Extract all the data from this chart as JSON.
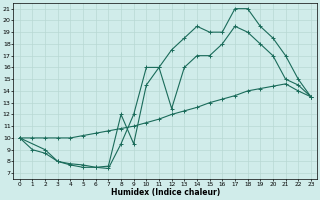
{
  "xlabel": "Humidex (Indice chaleur)",
  "xlim": [
    -0.5,
    23.5
  ],
  "ylim": [
    6.5,
    21.5
  ],
  "xticks": [
    0,
    1,
    2,
    3,
    4,
    5,
    6,
    7,
    8,
    9,
    10,
    11,
    12,
    13,
    14,
    15,
    16,
    17,
    18,
    19,
    20,
    21,
    22,
    23
  ],
  "yticks": [
    7,
    8,
    9,
    10,
    11,
    12,
    13,
    14,
    15,
    16,
    17,
    18,
    19,
    20,
    21
  ],
  "bg_color": "#d0ecea",
  "grid_color": "#b8d8d4",
  "line_color": "#1a6b5a",
  "line1_x": [
    0,
    1,
    2,
    3,
    4,
    5,
    6,
    7,
    8,
    9,
    10,
    11,
    12,
    13,
    14,
    15,
    16,
    17,
    18,
    19,
    20,
    21,
    22,
    23
  ],
  "line1_y": [
    10,
    9,
    8.7,
    8,
    7.7,
    7.5,
    7.5,
    7.4,
    9.5,
    12,
    16,
    16,
    17.5,
    18.5,
    19.5,
    19,
    19,
    21,
    21,
    19.5,
    18.5,
    17,
    15,
    13.5
  ],
  "line2_x": [
    0,
    2,
    3,
    4,
    5,
    6,
    7,
    8,
    9,
    10,
    11,
    12,
    13,
    14,
    15,
    16,
    17,
    18,
    19,
    20,
    21,
    22,
    23
  ],
  "line2_y": [
    10,
    9,
    8,
    7.8,
    7.7,
    7.5,
    7.6,
    12,
    9.5,
    14.5,
    16,
    12.5,
    16,
    17,
    17,
    18,
    19.5,
    19,
    18,
    17,
    15,
    14.5,
    13.5
  ],
  "line3_x": [
    0,
    1,
    2,
    3,
    4,
    5,
    6,
    7,
    8,
    9,
    10,
    11,
    12,
    13,
    14,
    15,
    16,
    17,
    18,
    19,
    20,
    21,
    22,
    23
  ],
  "line3_y": [
    10,
    10,
    10,
    10,
    10,
    10.2,
    10.4,
    10.6,
    10.8,
    11,
    11.3,
    11.6,
    12,
    12.3,
    12.6,
    13,
    13.3,
    13.6,
    14,
    14.2,
    14.4,
    14.6,
    14,
    13.5
  ]
}
